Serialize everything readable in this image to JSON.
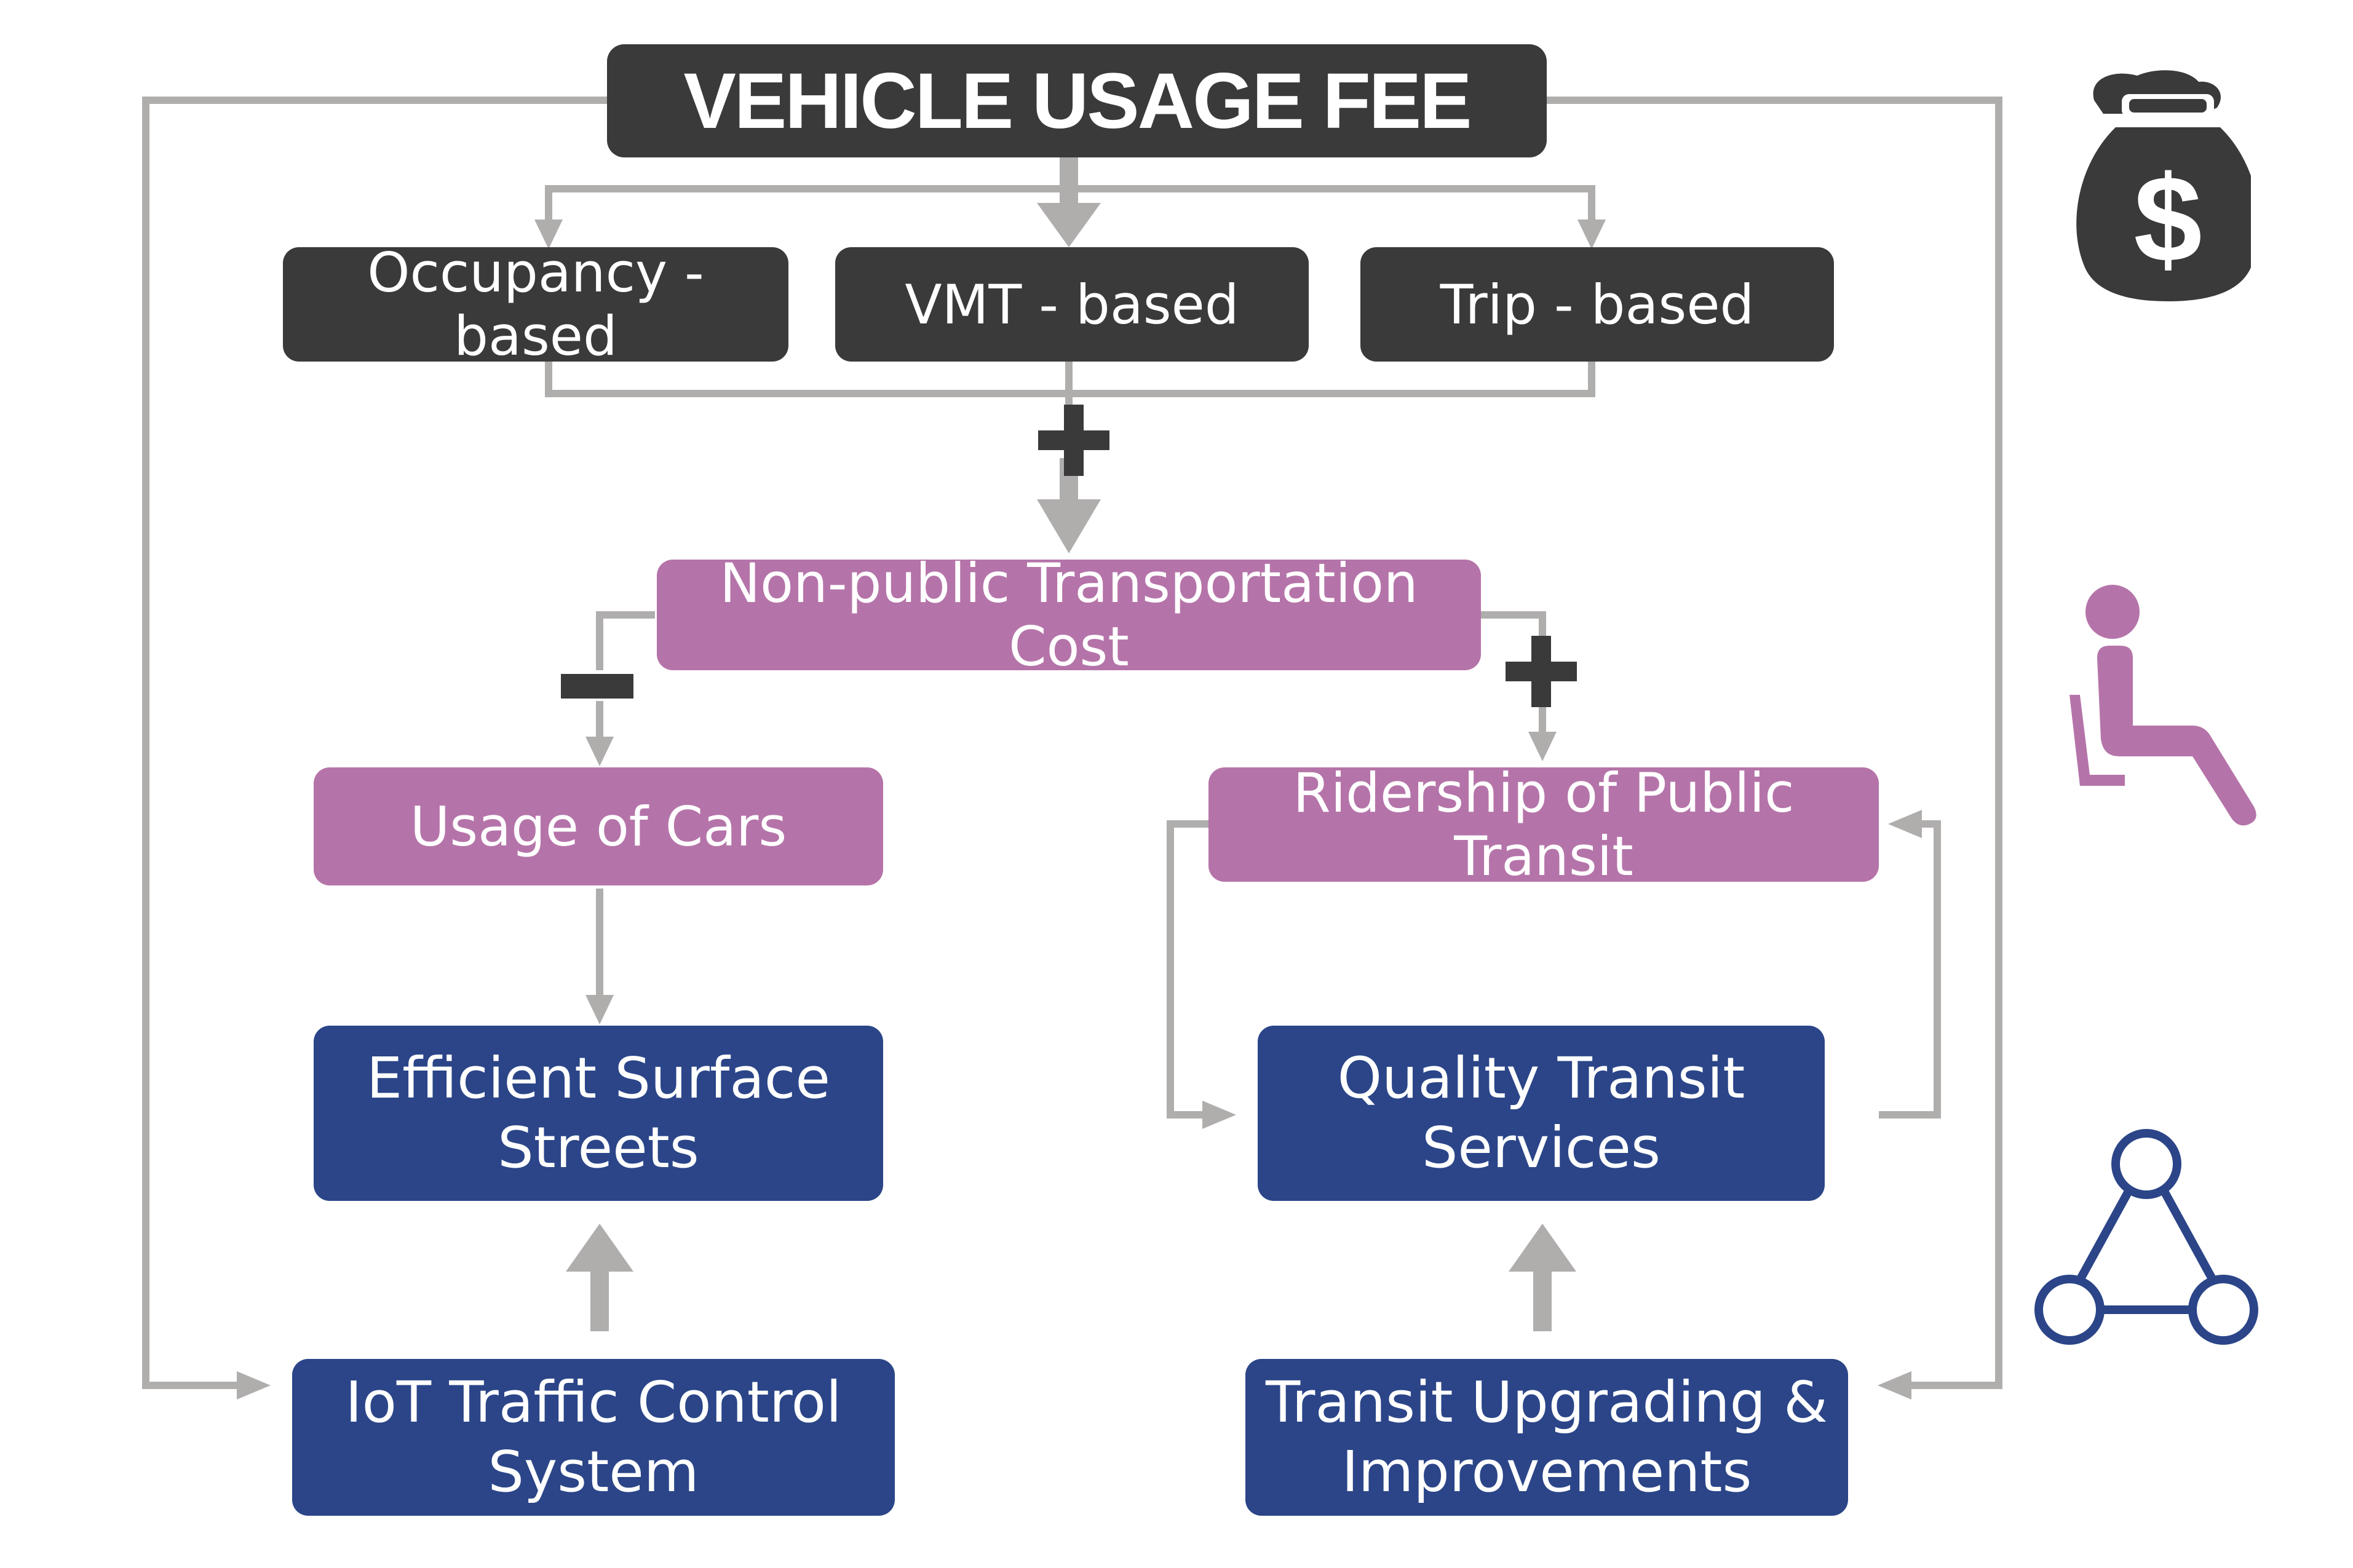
{
  "title": "VEHICLE USAGE FEE",
  "fee_types": [
    "Occupancy - based",
    "VMT - based",
    "Trip - based"
  ],
  "operators": {
    "sum": "+",
    "increase": "+",
    "decrease": "−"
  },
  "cost_node": "Non-public Transportation Cost",
  "effects": {
    "cars": "Usage of Cars",
    "transit": "Ridership of Public Transit"
  },
  "outcomes": {
    "streets": "Efficient Surface\nStreets",
    "transit_quality": "Quality Transit\nServices"
  },
  "investments": {
    "iot": "IoT Traffic Control\nSystem",
    "upgrades": "Transit Upgrading &\nImprovements"
  },
  "icons": [
    "money-bag-icon",
    "seated-passenger-icon",
    "network-icon"
  ],
  "colors": {
    "dark": "#3a3a3a",
    "purple": "#b574a9",
    "blue": "#2b4588",
    "connector": "#b0adad"
  }
}
